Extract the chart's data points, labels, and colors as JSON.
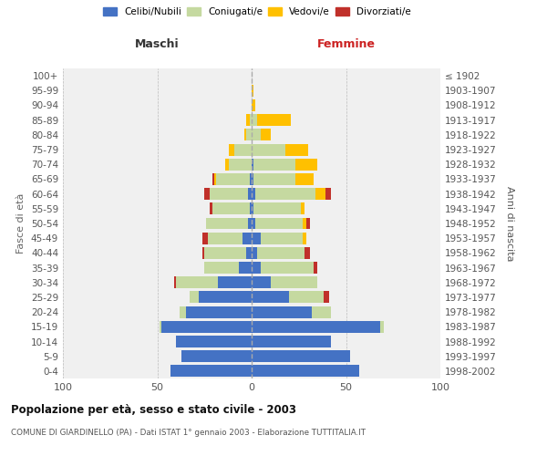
{
  "age_groups": [
    "0-4",
    "5-9",
    "10-14",
    "15-19",
    "20-24",
    "25-29",
    "30-34",
    "35-39",
    "40-44",
    "45-49",
    "50-54",
    "55-59",
    "60-64",
    "65-69",
    "70-74",
    "75-79",
    "80-84",
    "85-89",
    "90-94",
    "95-99",
    "100+"
  ],
  "birth_years": [
    "1998-2002",
    "1993-1997",
    "1988-1992",
    "1983-1987",
    "1978-1982",
    "1973-1977",
    "1968-1972",
    "1963-1967",
    "1958-1962",
    "1953-1957",
    "1948-1952",
    "1943-1947",
    "1938-1942",
    "1933-1937",
    "1928-1932",
    "1923-1927",
    "1918-1922",
    "1913-1917",
    "1908-1912",
    "1903-1907",
    "≤ 1902"
  ],
  "maschi_celibe": [
    43,
    37,
    40,
    48,
    35,
    28,
    18,
    7,
    3,
    5,
    2,
    1,
    2,
    1,
    0,
    0,
    0,
    0,
    0,
    0,
    0
  ],
  "maschi_coniugato": [
    0,
    0,
    0,
    1,
    3,
    5,
    22,
    18,
    22,
    18,
    22,
    20,
    20,
    18,
    12,
    9,
    3,
    1,
    0,
    0,
    0
  ],
  "maschi_vedovo": [
    0,
    0,
    0,
    0,
    0,
    0,
    0,
    0,
    0,
    0,
    0,
    0,
    0,
    1,
    2,
    3,
    1,
    2,
    0,
    0,
    0
  ],
  "maschi_divorziato": [
    0,
    0,
    0,
    0,
    0,
    0,
    1,
    0,
    1,
    3,
    0,
    1,
    3,
    1,
    0,
    0,
    0,
    0,
    0,
    0,
    0
  ],
  "femmine_celibe": [
    57,
    52,
    42,
    68,
    32,
    20,
    10,
    5,
    3,
    5,
    2,
    1,
    2,
    1,
    1,
    0,
    0,
    0,
    0,
    0,
    0
  ],
  "femmine_coniugato": [
    0,
    0,
    0,
    2,
    10,
    18,
    25,
    28,
    25,
    22,
    25,
    25,
    32,
    22,
    22,
    18,
    5,
    3,
    0,
    0,
    0
  ],
  "femmine_vedovo": [
    0,
    0,
    0,
    0,
    0,
    0,
    0,
    0,
    0,
    2,
    2,
    2,
    5,
    10,
    12,
    12,
    5,
    18,
    2,
    1,
    0
  ],
  "femmine_divorziato": [
    0,
    0,
    0,
    0,
    0,
    3,
    0,
    2,
    3,
    0,
    2,
    0,
    3,
    0,
    0,
    0,
    0,
    0,
    0,
    0,
    0
  ],
  "color_celibe": "#4472C4",
  "color_coniugato": "#c5d9a0",
  "color_vedovo": "#ffc000",
  "color_divorziato": "#c0302a",
  "title_main": "Popolazione per età, sesso e stato civile - 2003",
  "title_sub": "COMUNE DI GIARDINELLO (PA) - Dati ISTAT 1° gennaio 2003 - Elaborazione TUTTITALIA.IT",
  "ylabel_left": "Fasce di età",
  "ylabel_right": "Anni di nascita",
  "label_maschi": "Maschi",
  "label_femmine": "Femmine",
  "legend_labels": [
    "Celibi/Nubili",
    "Coniugati/e",
    "Vedovi/e",
    "Divorziati/e"
  ],
  "xlim": 100,
  "bg_color": "#f0f0f0"
}
